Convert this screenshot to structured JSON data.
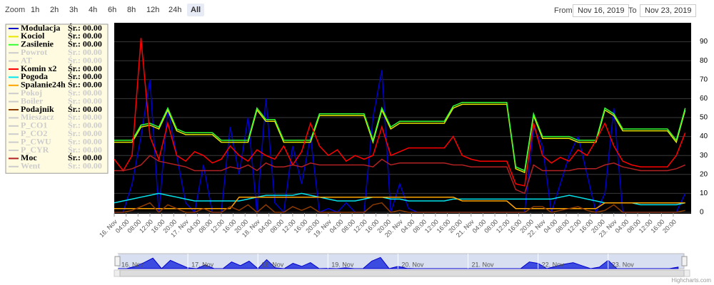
{
  "range_selector": {
    "zoom_label": "Zoom",
    "buttons": [
      "1h",
      "2h",
      "3h",
      "4h",
      "6h",
      "8h",
      "12h",
      "24h",
      "All"
    ],
    "selected": 8,
    "from_label": "From",
    "from": "Nov 16, 2019",
    "to_label": "To",
    "to": "Nov 23, 2019"
  },
  "credit": "Highcharts.com",
  "chart_data": {
    "type": "line",
    "x": [
      0,
      3,
      6,
      9,
      12,
      15,
      18,
      21,
      24,
      27,
      30,
      33,
      36,
      39,
      42,
      45,
      48,
      51,
      54,
      57,
      60,
      63,
      66,
      69,
      72,
      75,
      78,
      81,
      84,
      87,
      90,
      93,
      96,
      99,
      102,
      105,
      108,
      111,
      114,
      117,
      120,
      123,
      126,
      129,
      132,
      135,
      138,
      141,
      144,
      147,
      150,
      153,
      156,
      159,
      162,
      165,
      168,
      171,
      174,
      177,
      180,
      183,
      186,
      189,
      192
    ],
    "xlim": [
      0,
      194
    ],
    "xticks": [
      {
        "value": 0,
        "label": "16. Nov"
      },
      {
        "value": 4,
        "label": "04:00"
      },
      {
        "value": 8,
        "label": "08:00"
      },
      {
        "value": 12,
        "label": "12:00"
      },
      {
        "value": 16,
        "label": "16:00"
      },
      {
        "value": 20,
        "label": "20:00"
      },
      {
        "value": 24,
        "label": "17. Nov"
      },
      {
        "value": 28,
        "label": "04:00"
      },
      {
        "value": 32,
        "label": "08:00"
      },
      {
        "value": 36,
        "label": "12:00"
      },
      {
        "value": 40,
        "label": "16:00"
      },
      {
        "value": 44,
        "label": "20:00"
      },
      {
        "value": 48,
        "label": "18. Nov"
      },
      {
        "value": 52,
        "label": "04:00"
      },
      {
        "value": 56,
        "label": "08:00"
      },
      {
        "value": 60,
        "label": "12:00"
      },
      {
        "value": 64,
        "label": "16:00"
      },
      {
        "value": 68,
        "label": "20:00"
      },
      {
        "value": 72,
        "label": "19. Nov"
      },
      {
        "value": 76,
        "label": "04:00"
      },
      {
        "value": 80,
        "label": "08:00"
      },
      {
        "value": 84,
        "label": "12:00"
      },
      {
        "value": 88,
        "label": "16:00"
      },
      {
        "value": 92,
        "label": "20:00"
      },
      {
        "value": 96,
        "label": "20. Nov"
      },
      {
        "value": 100,
        "label": "04:00"
      },
      {
        "value": 104,
        "label": "08:00"
      },
      {
        "value": 108,
        "label": "12:00"
      },
      {
        "value": 112,
        "label": "16:00"
      },
      {
        "value": 116,
        "label": "20:00"
      },
      {
        "value": 120,
        "label": "21. Nov"
      },
      {
        "value": 124,
        "label": "04:00"
      },
      {
        "value": 128,
        "label": "08:00"
      },
      {
        "value": 132,
        "label": "12:00"
      },
      {
        "value": 136,
        "label": "16:00"
      },
      {
        "value": 140,
        "label": "20:00"
      },
      {
        "value": 144,
        "label": "22. Nov"
      },
      {
        "value": 148,
        "label": "04:00"
      },
      {
        "value": 152,
        "label": "08:00"
      },
      {
        "value": 156,
        "label": "12:00"
      },
      {
        "value": 160,
        "label": "16:00"
      },
      {
        "value": 164,
        "label": "20:00"
      },
      {
        "value": 168,
        "label": "23. Nov"
      },
      {
        "value": 172,
        "label": "04:00"
      },
      {
        "value": 176,
        "label": "08:00"
      },
      {
        "value": 180,
        "label": "12:00"
      },
      {
        "value": 184,
        "label": "16:00"
      },
      {
        "value": 188,
        "label": "20:00"
      }
    ],
    "ylim": [
      0,
      100
    ],
    "yticks": [
      0,
      10,
      20,
      30,
      40,
      50,
      60,
      70,
      80,
      90
    ],
    "grid": true,
    "series": [
      {
        "name": "Modulacja",
        "summary": "Śr.: 00.00",
        "color": "#0000cc",
        "visible": true,
        "values": [
          0,
          0,
          15,
          40,
          70,
          0,
          55,
          30,
          5,
          0,
          25,
          0,
          0,
          45,
          20,
          50,
          0,
          60,
          5,
          0,
          35,
          15,
          40,
          0,
          2,
          0,
          5,
          0,
          0,
          50,
          75,
          0,
          15,
          2,
          0,
          0,
          0,
          0,
          0,
          0,
          0,
          0,
          0,
          0,
          0,
          0,
          0,
          45,
          35,
          0,
          15,
          30,
          40,
          20,
          0,
          10,
          55,
          0,
          0,
          0,
          0,
          0,
          0,
          0,
          10
        ]
      },
      {
        "name": "Kociol",
        "summary": "Śr.: 00.00",
        "color": "#e6e600",
        "visible": true,
        "values": [
          37,
          37,
          37,
          45,
          46,
          44,
          54,
          43,
          41,
          41,
          41,
          41,
          37,
          37,
          37,
          37,
          54,
          48,
          48,
          37,
          37,
          37,
          37,
          51,
          51,
          51,
          51,
          51,
          51,
          37,
          54,
          44,
          47,
          47,
          47,
          47,
          47,
          47,
          55,
          57,
          57,
          57,
          57,
          57,
          57,
          23,
          21,
          51,
          39,
          39,
          39,
          39,
          37,
          37,
          37,
          54,
          51,
          43,
          43,
          43,
          43,
          43,
          43,
          37,
          54
        ]
      },
      {
        "name": "Zasilenie",
        "summary": "Śr.: 00.00",
        "color": "#33ff33",
        "visible": true,
        "values": [
          38,
          38,
          38,
          46,
          47,
          45,
          55,
          44,
          42,
          42,
          42,
          42,
          38,
          38,
          38,
          38,
          55,
          49,
          49,
          38,
          38,
          38,
          38,
          52,
          52,
          52,
          52,
          52,
          52,
          38,
          55,
          45,
          48,
          48,
          48,
          48,
          48,
          48,
          56,
          58,
          58,
          58,
          58,
          58,
          58,
          24,
          22,
          52,
          40,
          40,
          40,
          40,
          38,
          38,
          38,
          55,
          52,
          44,
          44,
          44,
          44,
          44,
          44,
          38,
          55
        ]
      },
      {
        "name": "Powrot",
        "summary": "Śr.: 00.00",
        "visible": false
      },
      {
        "name": "AT",
        "summary": "Śr.: 00.00",
        "visible": false
      },
      {
        "name": "Komin x2",
        "summary": "Śr.: 00.00",
        "color": "#ff0000",
        "visible": true,
        "values": [
          28,
          22,
          30,
          92,
          40,
          28,
          47,
          30,
          27,
          32,
          30,
          26,
          28,
          35,
          30,
          27,
          33,
          30,
          28,
          35,
          25,
          32,
          47,
          35,
          30,
          33,
          27,
          30,
          28,
          30,
          45,
          30,
          32,
          34,
          34,
          34,
          34,
          34,
          40,
          30,
          28,
          27,
          27,
          27,
          27,
          15,
          14,
          47,
          30,
          26,
          29,
          27,
          33,
          30,
          38,
          47,
          35,
          27,
          25,
          24,
          24,
          24,
          24,
          30,
          42
        ]
      },
      {
        "name": "Pogoda",
        "summary": "Śr.: 00.00",
        "color": "#00e5ee",
        "visible": true,
        "values": [
          5,
          6,
          7,
          8,
          9,
          10,
          9,
          8,
          7,
          6,
          6,
          6,
          6,
          6,
          6,
          7,
          8,
          9,
          9,
          9,
          9,
          10,
          9,
          8,
          7,
          6,
          6,
          6,
          7,
          8,
          8,
          7,
          7,
          6,
          6,
          6,
          6,
          6,
          7,
          7,
          7,
          7,
          7,
          7,
          7,
          7,
          7,
          7,
          7,
          7,
          8,
          9,
          8,
          7,
          6,
          5,
          5,
          5,
          5,
          4,
          4,
          4,
          4,
          4,
          5
        ]
      },
      {
        "name": "Spalanie24h",
        "summary": "Śr.: 00.00",
        "color": "#ffa500",
        "visible": true,
        "values": [
          2,
          2,
          2,
          2,
          2,
          2,
          2,
          2,
          2,
          2,
          2,
          2,
          2,
          2,
          8,
          8,
          8,
          8,
          8,
          8,
          8,
          8,
          8,
          8,
          8,
          8,
          8,
          8,
          8,
          8,
          8,
          8,
          8,
          8,
          8,
          8,
          8,
          8,
          8,
          6,
          6,
          6,
          6,
          6,
          6,
          2,
          2,
          2,
          2,
          2,
          2,
          2,
          2,
          2,
          2,
          5,
          5,
          5,
          5,
          5,
          5,
          5,
          5,
          5,
          5
        ]
      },
      {
        "name": "Pokoj",
        "summary": "Śr.: 00.00",
        "visible": false
      },
      {
        "name": "Boiler",
        "summary": "Śr.: 00.00",
        "visible": false
      },
      {
        "name": "Podajnik",
        "summary": "Śr.: 00.00",
        "color": "#8b3a00",
        "visible": true,
        "values": [
          0,
          0,
          1,
          3,
          5,
          0,
          4,
          2,
          0,
          0,
          2,
          0,
          0,
          3,
          1,
          4,
          0,
          4,
          0,
          0,
          3,
          1,
          3,
          0,
          0,
          0,
          0,
          0,
          0,
          4,
          5,
          0,
          1,
          0,
          0,
          0,
          0,
          0,
          0,
          0,
          0,
          0,
          0,
          0,
          0,
          0,
          0,
          3,
          3,
          0,
          1,
          2,
          3,
          1,
          0,
          1,
          4,
          0,
          0,
          0,
          0,
          0,
          0,
          0,
          1
        ]
      },
      {
        "name": "Mieszacz",
        "summary": "Śr.: 00.00",
        "visible": false
      },
      {
        "name": "P_CO1",
        "summary": "Śr.: 00.00",
        "visible": false
      },
      {
        "name": "P_CO2",
        "summary": "Śr.: 00.00",
        "visible": false
      },
      {
        "name": "P_CWU",
        "summary": "Śr.: 00.00",
        "visible": false
      },
      {
        "name": "P_CYR",
        "summary": "Śr.: 00.00",
        "visible": false
      },
      {
        "name": "Moc",
        "summary": "Śr.: 00.00",
        "color": "#b22222",
        "visible": true,
        "values": [
          22,
          22,
          23,
          25,
          30,
          27,
          26,
          25,
          24,
          22,
          22,
          22,
          22,
          24,
          23,
          25,
          22,
          26,
          24,
          24,
          25,
          24,
          26,
          25,
          25,
          25,
          25,
          25,
          25,
          24,
          28,
          25,
          26,
          26,
          26,
          26,
          26,
          26,
          25,
          25,
          24,
          24,
          24,
          24,
          24,
          12,
          10,
          25,
          22,
          22,
          22,
          22,
          23,
          23,
          23,
          25,
          26,
          24,
          23,
          22,
          22,
          22,
          22,
          23,
          25
        ]
      },
      {
        "name": "Went",
        "summary": "Śr.: 00.00",
        "visible": false
      }
    ]
  }
}
